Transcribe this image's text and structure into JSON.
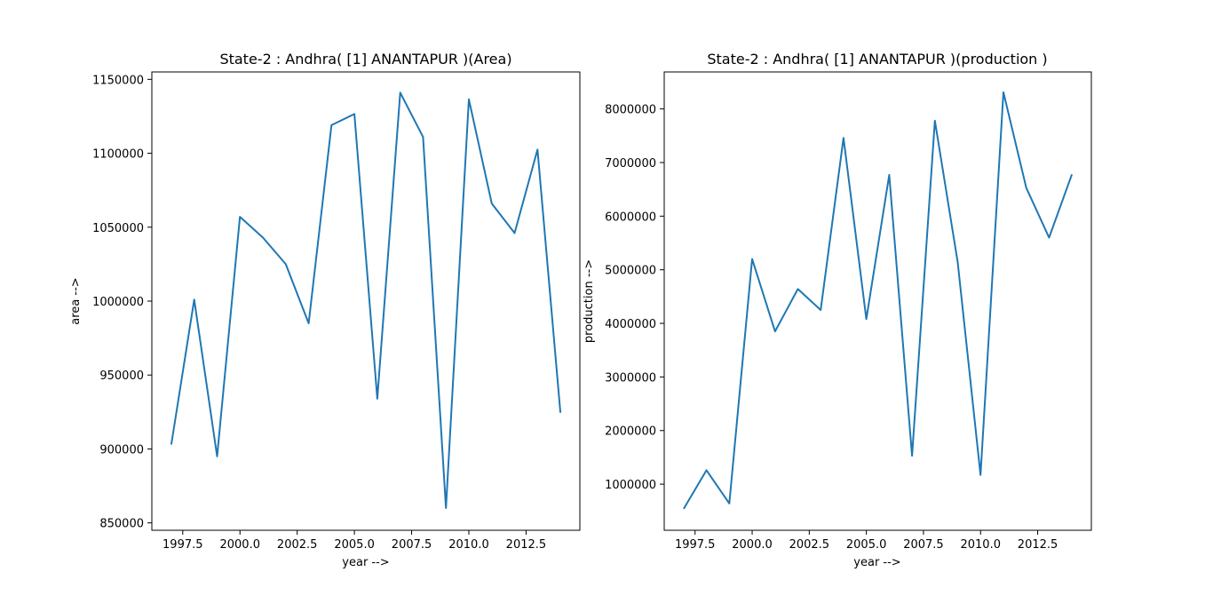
{
  "chart_data": [
    {
      "type": "line",
      "title": "State-2 : Andhra( [1] ANANTAPUR )(Area)",
      "xlabel": "year -->",
      "ylabel": "area -->",
      "xlim": [
        1996.15,
        2014.85
      ],
      "ylim": [
        845000,
        1155000
      ],
      "xticks": [
        1997.5,
        2000.0,
        2002.5,
        2005.0,
        2007.5,
        2010.0,
        2012.5
      ],
      "xtick_labels": [
        "1997.5",
        "2000.0",
        "2002.5",
        "2005.0",
        "2007.5",
        "2010.0",
        "2012.5"
      ],
      "yticks": [
        850000,
        900000,
        950000,
        1000000,
        1050000,
        1100000,
        1150000
      ],
      "ytick_labels": [
        "850000",
        "900000",
        "950000",
        "1000000",
        "1050000",
        "1100000",
        "1150000"
      ],
      "grid": false,
      "x": [
        1997,
        1998,
        1999,
        2000,
        2001,
        2002,
        2003,
        2004,
        2005,
        2006,
        2007,
        2008,
        2009,
        2010,
        2011,
        2012,
        2013,
        2014
      ],
      "series": [
        {
          "color": "#1f77b4",
          "values": [
            903000,
            1001000,
            895000,
            1057000,
            1043000,
            1025000,
            985000,
            1119000,
            1126500,
            934000,
            1141000,
            1111000,
            860000,
            1136500,
            1066000,
            1046000,
            1102500,
            924500
          ]
        }
      ]
    },
    {
      "type": "line",
      "title": "State-2 : Andhra( [1] ANANTAPUR )(production )",
      "xlabel": "year -->",
      "ylabel": "production -->",
      "xlim": [
        1996.15,
        2014.85
      ],
      "ylim": [
        140000,
        8690000
      ],
      "xticks": [
        1997.5,
        2000.0,
        2002.5,
        2005.0,
        2007.5,
        2010.0,
        2012.5
      ],
      "xtick_labels": [
        "1997.5",
        "2000.0",
        "2002.5",
        "2005.0",
        "2007.5",
        "2010.0",
        "2012.5"
      ],
      "yticks": [
        1000000,
        2000000,
        3000000,
        4000000,
        5000000,
        6000000,
        7000000,
        8000000
      ],
      "ytick_labels": [
        "1000000",
        "2000000",
        "3000000",
        "4000000",
        "5000000",
        "6000000",
        "7000000",
        "8000000"
      ],
      "grid": false,
      "x": [
        1997,
        1998,
        1999,
        2000,
        2001,
        2002,
        2003,
        2004,
        2005,
        2006,
        2007,
        2008,
        2009,
        2010,
        2011,
        2012,
        2013,
        2014
      ],
      "series": [
        {
          "color": "#1f77b4",
          "values": [
            540000,
            1260000,
            640000,
            5200000,
            3850000,
            4640000,
            4250000,
            7460000,
            4080000,
            6770000,
            1530000,
            7780000,
            5140000,
            1170000,
            8310000,
            6530000,
            5600000,
            6780000
          ]
        }
      ]
    }
  ]
}
